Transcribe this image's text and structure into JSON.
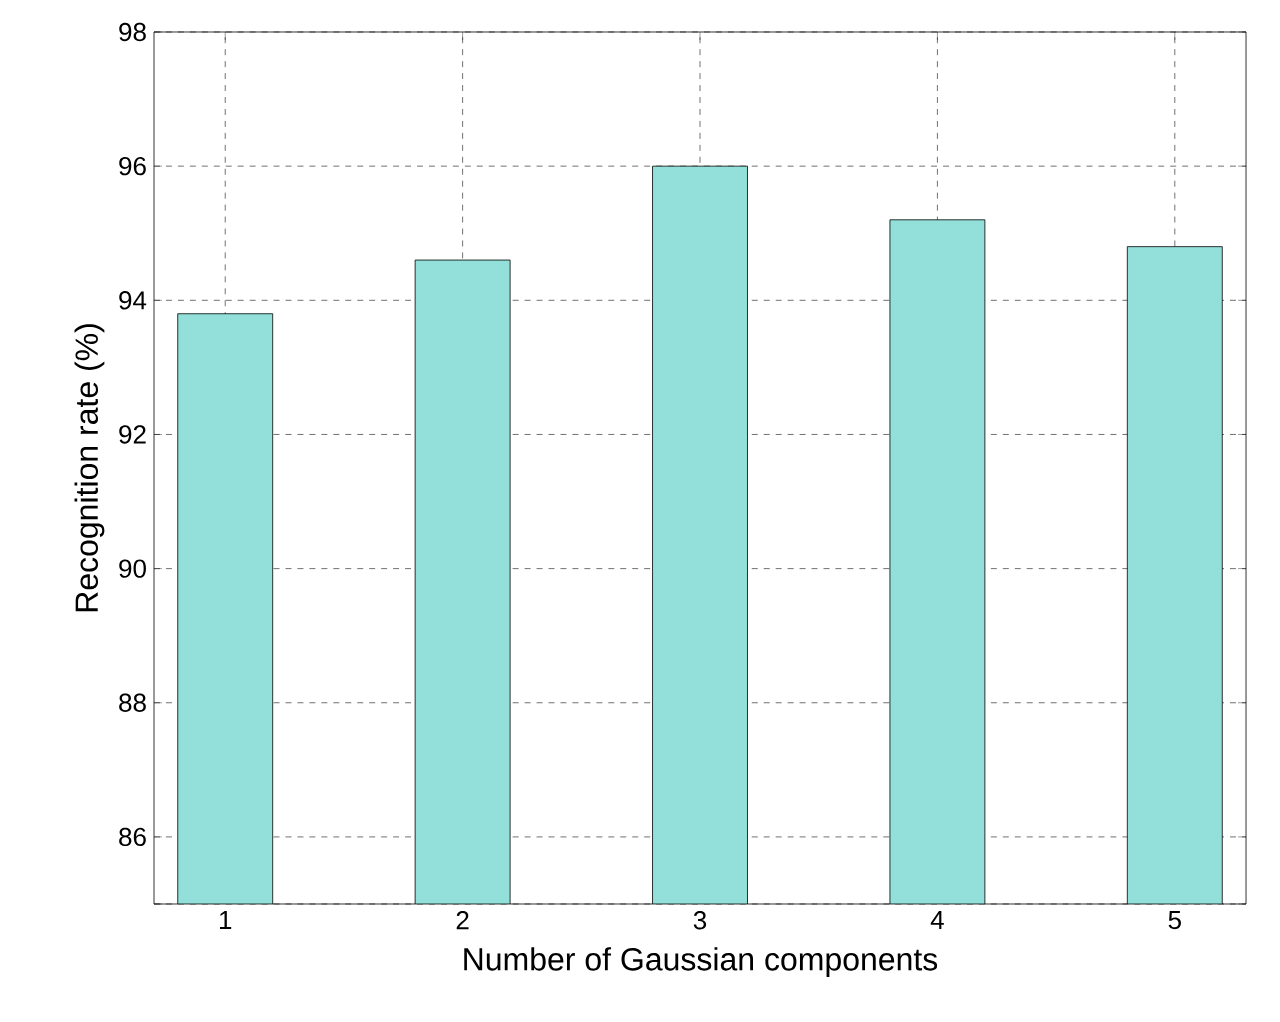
{
  "chart_data": {
    "type": "bar",
    "xlabel": "Number of Gaussian components",
    "ylabel": "Recognition rate (%)",
    "categories": [
      "1",
      "2",
      "3",
      "4",
      "5"
    ],
    "values": [
      93.8,
      94.6,
      96.0,
      95.2,
      94.8
    ],
    "color": "#92e0d9",
    "ylim": [
      85,
      98
    ],
    "yticks": [
      {
        "value": 85,
        "label": null
      },
      86,
      88,
      90,
      92,
      94,
      96,
      98
    ],
    "grid": true
  }
}
